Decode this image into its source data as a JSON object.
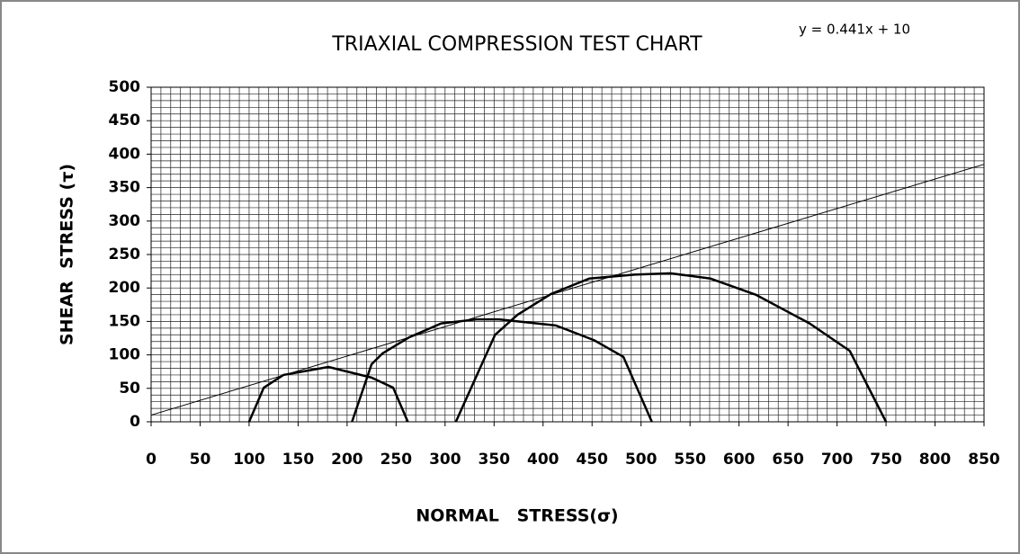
{
  "chart_data": {
    "type": "line",
    "title": "TRIAXIAL COMPRESSION TEST CHART",
    "annotation": "y = 0.441x + 10",
    "x_label": "NORMAL   STRESS(σ)",
    "y_label": "SHEAR  STRESS (τ)",
    "xlim": [
      0,
      850
    ],
    "ylim": [
      0,
      500
    ],
    "xticks": [
      0,
      50,
      100,
      150,
      200,
      250,
      300,
      350,
      400,
      450,
      500,
      550,
      600,
      650,
      700,
      750,
      800,
      850
    ],
    "yticks": [
      0,
      50,
      100,
      150,
      200,
      250,
      300,
      350,
      400,
      450,
      500
    ],
    "grid": {
      "x_step": 10,
      "y_step": 10,
      "color": "#222"
    },
    "series": [
      {
        "color": "#000000",
        "width": 2.5,
        "x": [
          100,
          115,
          135,
          181,
          225,
          247,
          262
        ],
        "values": [
          0,
          51,
          70,
          82,
          66,
          51,
          0
        ]
      },
      {
        "color": "#000000",
        "width": 2.5,
        "x": [
          205,
          225,
          236,
          263,
          296,
          332,
          355,
          413,
          452,
          482,
          511
        ],
        "values": [
          0,
          86,
          102,
          126,
          147,
          153,
          153,
          144,
          122,
          97,
          0
        ]
      },
      {
        "color": "#000000",
        "width": 2.5,
        "x": [
          311,
          351,
          374,
          408,
          447,
          493,
          530,
          571,
          617,
          672,
          713,
          750
        ],
        "values": [
          0,
          130,
          160,
          191,
          214,
          220,
          222,
          214,
          190,
          147,
          106,
          0
        ]
      },
      {
        "color": "#000000",
        "width": 1,
        "x": [
          0,
          850
        ],
        "values": [
          10,
          384.85
        ]
      }
    ]
  }
}
